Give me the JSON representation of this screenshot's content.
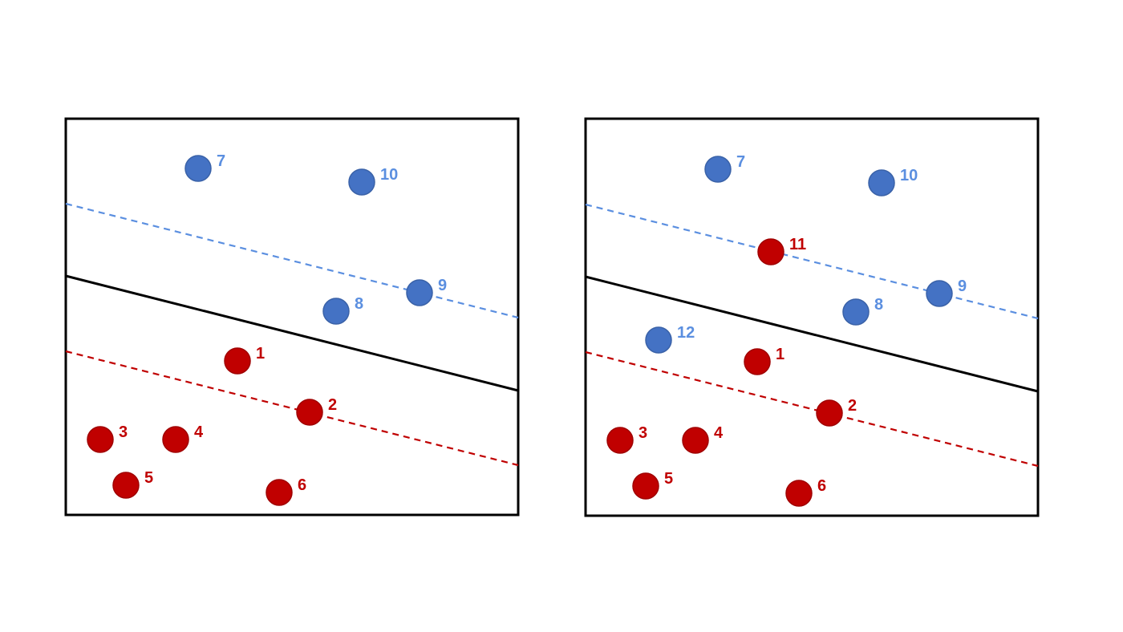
{
  "colors": {
    "class_blue": "#4472C4",
    "class_blue_label": "#5B8FE0",
    "class_red": "#C00000",
    "class_red_stroke": "#A00000",
    "boundary": "#000000",
    "frame": "#000000"
  },
  "panels": [
    {
      "id": "left",
      "points": [
        {
          "label": "1",
          "class": "red"
        },
        {
          "label": "2",
          "class": "red"
        },
        {
          "label": "3",
          "class": "red"
        },
        {
          "label": "4",
          "class": "red"
        },
        {
          "label": "5",
          "class": "red"
        },
        {
          "label": "6",
          "class": "red"
        },
        {
          "label": "7",
          "class": "blue"
        },
        {
          "label": "8",
          "class": "blue"
        },
        {
          "label": "9",
          "class": "blue"
        },
        {
          "label": "10",
          "class": "blue"
        }
      ]
    },
    {
      "id": "right",
      "points": [
        {
          "label": "1",
          "class": "red"
        },
        {
          "label": "2",
          "class": "red"
        },
        {
          "label": "3",
          "class": "red"
        },
        {
          "label": "4",
          "class": "red"
        },
        {
          "label": "5",
          "class": "red"
        },
        {
          "label": "6",
          "class": "red"
        },
        {
          "label": "7",
          "class": "blue"
        },
        {
          "label": "8",
          "class": "blue"
        },
        {
          "label": "9",
          "class": "blue"
        },
        {
          "label": "10",
          "class": "blue"
        },
        {
          "label": "11",
          "class": "red"
        },
        {
          "label": "12",
          "class": "blue"
        }
      ]
    }
  ]
}
